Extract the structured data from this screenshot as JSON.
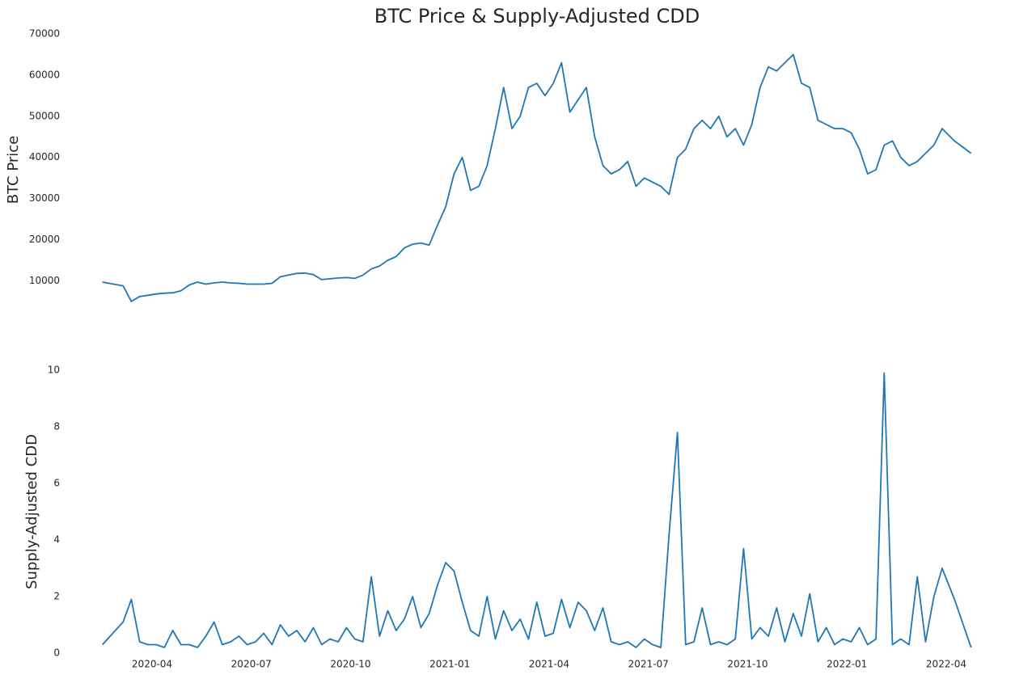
{
  "chart_data": [
    {
      "type": "line",
      "title": "BTC Price & Supply-Adjusted CDD",
      "y_label": "BTC  Price",
      "x": [
        "2020-02",
        "2020-03",
        "2020-03",
        "2020-03",
        "2020-03",
        "2020-04",
        "2020-04",
        "2020-04",
        "2020-04",
        "2020-05",
        "2020-05",
        "2020-05",
        "2020-05",
        "2020-06",
        "2020-06",
        "2020-06",
        "2020-06",
        "2020-07",
        "2020-07",
        "2020-07",
        "2020-07",
        "2020-08",
        "2020-08",
        "2020-08",
        "2020-08",
        "2020-09",
        "2020-09",
        "2020-09",
        "2020-09",
        "2020-10",
        "2020-10",
        "2020-10",
        "2020-10",
        "2020-11",
        "2020-11",
        "2020-11",
        "2020-11",
        "2020-12",
        "2020-12",
        "2020-12",
        "2020-12",
        "2021-01",
        "2021-01",
        "2021-01",
        "2021-01",
        "2021-02",
        "2021-02",
        "2021-02",
        "2021-02",
        "2021-03",
        "2021-03",
        "2021-03",
        "2021-03",
        "2021-04",
        "2021-04",
        "2021-04",
        "2021-04",
        "2021-05",
        "2021-05",
        "2021-05",
        "2021-05",
        "2021-06",
        "2021-06",
        "2021-06",
        "2021-06",
        "2021-07",
        "2021-07",
        "2021-07",
        "2021-07",
        "2021-08",
        "2021-08",
        "2021-08",
        "2021-08",
        "2021-09",
        "2021-09",
        "2021-09",
        "2021-09",
        "2021-10",
        "2021-10",
        "2021-10",
        "2021-10",
        "2021-11",
        "2021-11",
        "2021-11",
        "2021-11",
        "2021-12",
        "2021-12",
        "2021-12",
        "2021-12",
        "2022-01",
        "2022-01",
        "2022-01",
        "2022-01",
        "2022-02",
        "2022-02",
        "2022-02",
        "2022-02",
        "2022-03",
        "2022-03",
        "2022-03",
        "2022-03",
        "2022-04",
        "2022-04"
      ],
      "series": [
        {
          "color": "#1f77b4",
          "values": [
            9700,
            8800,
            5000,
            6200,
            6500,
            6800,
            7000,
            7100,
            7600,
            9000,
            9700,
            9200,
            9500,
            9700,
            9500,
            9400,
            9200,
            9200,
            9200,
            9400,
            11000,
            11400,
            11800,
            11900,
            11500,
            10300,
            10500,
            10700,
            10800,
            10600,
            11400,
            12900,
            13600,
            15000,
            15900,
            18000,
            18900,
            19200,
            18700,
            23500,
            28000,
            36000,
            40000,
            32000,
            33000,
            38000,
            47000,
            57000,
            47000,
            50000,
            57000,
            58000,
            55000,
            58000,
            63000,
            51000,
            54000,
            57000,
            45000,
            38000,
            36000,
            37000,
            39000,
            33000,
            35000,
            34000,
            33000,
            31000,
            40000,
            42000,
            47000,
            49000,
            47000,
            50000,
            45000,
            47000,
            43000,
            48000,
            57000,
            62000,
            61000,
            63000,
            65000,
            58000,
            57000,
            49000,
            48000,
            47000,
            47000,
            46000,
            42000,
            36000,
            37000,
            43000,
            44000,
            40000,
            38000,
            39000,
            41000,
            43000,
            47000,
            44000,
            41000
          ]
        }
      ],
      "ylim": [
        4000,
        70000
      ],
      "yticks": [
        10000,
        20000,
        30000,
        40000,
        50000,
        60000,
        70000
      ],
      "grid": false
    },
    {
      "type": "line",
      "y_label": "Supply-Adjusted CDD",
      "x": [
        "2020-02",
        "2020-03",
        "2020-03",
        "2020-03",
        "2020-03",
        "2020-04",
        "2020-04",
        "2020-04",
        "2020-04",
        "2020-05",
        "2020-05",
        "2020-05",
        "2020-05",
        "2020-06",
        "2020-06",
        "2020-06",
        "2020-06",
        "2020-07",
        "2020-07",
        "2020-07",
        "2020-07",
        "2020-08",
        "2020-08",
        "2020-08",
        "2020-08",
        "2020-09",
        "2020-09",
        "2020-09",
        "2020-09",
        "2020-10",
        "2020-10",
        "2020-10",
        "2020-10",
        "2020-11",
        "2020-11",
        "2020-11",
        "2020-11",
        "2020-12",
        "2020-12",
        "2020-12",
        "2020-12",
        "2021-01",
        "2021-01",
        "2021-01",
        "2021-01",
        "2021-02",
        "2021-02",
        "2021-02",
        "2021-02",
        "2021-03",
        "2021-03",
        "2021-03",
        "2021-03",
        "2021-04",
        "2021-04",
        "2021-04",
        "2021-04",
        "2021-05",
        "2021-05",
        "2021-05",
        "2021-05",
        "2021-06",
        "2021-06",
        "2021-06",
        "2021-06",
        "2021-07",
        "2021-07",
        "2021-07",
        "2021-07",
        "2021-08",
        "2021-08",
        "2021-08",
        "2021-08",
        "2021-09",
        "2021-09",
        "2021-09",
        "2021-09",
        "2021-10",
        "2021-10",
        "2021-10",
        "2021-10",
        "2021-11",
        "2021-11",
        "2021-11",
        "2021-11",
        "2021-12",
        "2021-12",
        "2021-12",
        "2021-12",
        "2022-01",
        "2022-01",
        "2022-01",
        "2022-01",
        "2022-02",
        "2022-02",
        "2022-02",
        "2022-02",
        "2022-03",
        "2022-03",
        "2022-03",
        "2022-03",
        "2022-04",
        "2022-04"
      ],
      "series": [
        {
          "color": "#1f77b4",
          "values": [
            0.3,
            1.1,
            1.9,
            0.4,
            0.3,
            0.3,
            0.2,
            0.8,
            0.3,
            0.3,
            0.2,
            0.6,
            1.1,
            0.3,
            0.4,
            0.6,
            0.3,
            0.4,
            0.7,
            0.3,
            1.0,
            0.6,
            0.8,
            0.4,
            0.9,
            0.3,
            0.5,
            0.4,
            0.9,
            0.5,
            0.4,
            2.7,
            0.6,
            1.5,
            0.8,
            1.2,
            2.0,
            0.9,
            1.4,
            2.4,
            3.2,
            2.9,
            1.8,
            0.8,
            0.6,
            2.0,
            0.5,
            1.5,
            0.8,
            1.2,
            0.5,
            1.8,
            0.6,
            0.7,
            1.9,
            0.9,
            1.8,
            1.5,
            0.8,
            1.6,
            0.4,
            0.3,
            0.4,
            0.2,
            0.5,
            0.3,
            0.2,
            4.2,
            7.8,
            0.3,
            0.4,
            1.6,
            0.3,
            0.4,
            0.3,
            0.5,
            3.7,
            0.5,
            0.9,
            0.6,
            1.6,
            0.4,
            1.4,
            0.6,
            2.1,
            0.4,
            0.9,
            0.3,
            0.5,
            0.4,
            0.9,
            0.3,
            0.5,
            9.9,
            0.3,
            0.5,
            0.3,
            2.7,
            0.4,
            2.0,
            3.0,
            1.9,
            0.2
          ]
        }
      ],
      "ylim": [
        0,
        10
      ],
      "yticks": [
        0,
        2,
        4,
        6,
        8,
        10
      ],
      "xticks": [
        "2020-04",
        "2020-07",
        "2020-10",
        "2021-01",
        "2021-04",
        "2021-07",
        "2021-10",
        "2022-01",
        "2022-04"
      ],
      "grid": false
    }
  ]
}
